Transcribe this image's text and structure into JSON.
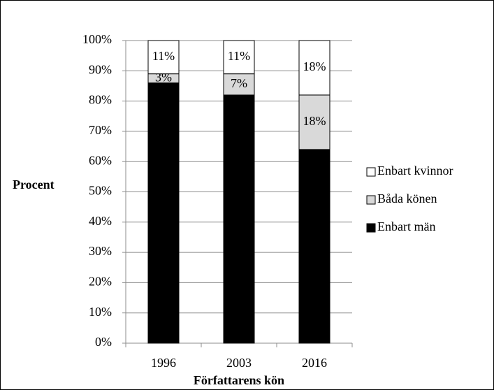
{
  "chart_data": {
    "type": "stacked_bar",
    "x_label": "Författarens kön",
    "y_label": "Procent",
    "categories": [
      "1996",
      "2003",
      "2016"
    ],
    "series": [
      {
        "name": "Enbart män",
        "color": "#000000",
        "values": [
          86,
          82,
          64
        ]
      },
      {
        "name": "Båda könen",
        "color": "#d9d9d9",
        "values": [
          3,
          7,
          18
        ],
        "value_labels": [
          "3%",
          "7%",
          "18%"
        ]
      },
      {
        "name": "Enbart kvinnor",
        "color": "#ffffff",
        "values": [
          11,
          11,
          18
        ],
        "value_labels": [
          "11%",
          "11%",
          "18%"
        ]
      }
    ],
    "ylim": [
      0,
      100
    ],
    "yticks": [
      {
        "value": 0,
        "label": "0%"
      },
      {
        "value": 10,
        "label": "10%"
      },
      {
        "value": 20,
        "label": "20%"
      },
      {
        "value": 30,
        "label": "30%"
      },
      {
        "value": 40,
        "label": "40%"
      },
      {
        "value": 50,
        "label": "50%"
      },
      {
        "value": 60,
        "label": "60%"
      },
      {
        "value": 70,
        "label": "70%"
      },
      {
        "value": 80,
        "label": "80%"
      },
      {
        "value": 90,
        "label": "90%"
      },
      {
        "value": 100,
        "label": "100%"
      }
    ],
    "grid": true,
    "legend": "right"
  }
}
